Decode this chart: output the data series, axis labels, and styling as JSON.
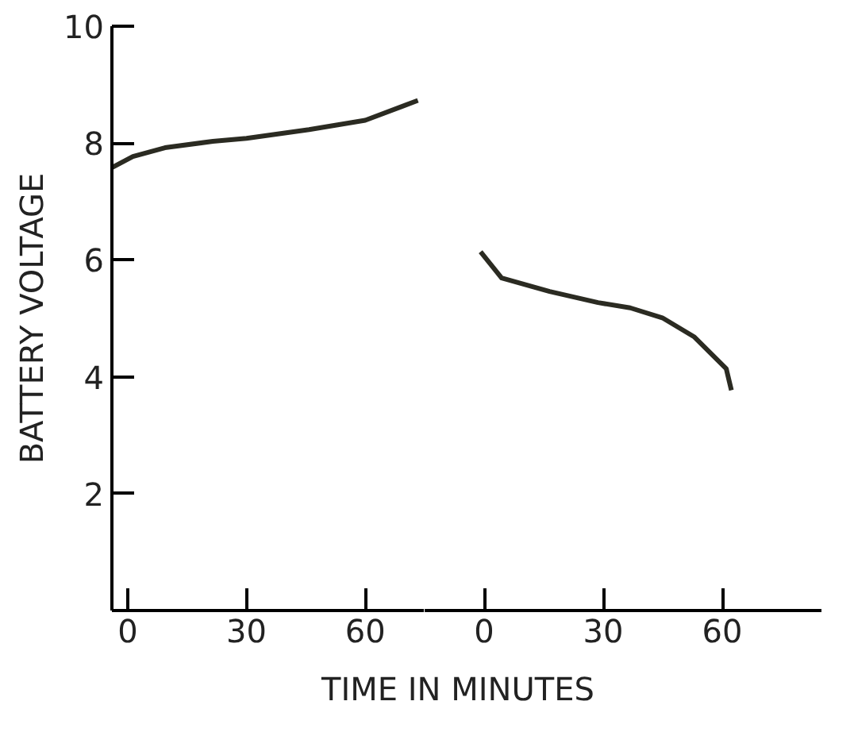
{
  "chart_data": [
    {
      "type": "line",
      "xlabel": "TIME IN MINUTES",
      "ylabel": "BATTERY VOLTAGE",
      "xlim": [
        -4,
        75
      ],
      "ylim": [
        0,
        10
      ],
      "xticks": [
        0,
        30,
        60
      ],
      "yticks": [
        2,
        4,
        6,
        8,
        10
      ],
      "grid": false,
      "line_style": "solid",
      "series": [
        {
          "color": "#2b2b22",
          "x": [
            -4,
            1.3,
            9.4,
            21.5,
            30,
            45.8,
            60,
            73.3
          ],
          "values": [
            7.58,
            7.77,
            7.92,
            8.03,
            8.08,
            8.23,
            8.39,
            8.73
          ]
        }
      ]
    },
    {
      "type": "line",
      "xlim": [
        -15,
        85
      ],
      "ylim": [
        0,
        10
      ],
      "xticks": [
        0,
        30,
        60
      ],
      "tick_labels": "x",
      "grid": false,
      "line_style": "solid",
      "series": [
        {
          "color": "#2b2b22",
          "x": [
            -0.9,
            4.4,
            16.5,
            28.7,
            36.8,
            44.9,
            53,
            61,
            62.3
          ],
          "values": [
            6.14,
            5.69,
            5.46,
            5.27,
            5.18,
            5.01,
            4.68,
            4.14,
            3.77
          ]
        }
      ]
    }
  ]
}
